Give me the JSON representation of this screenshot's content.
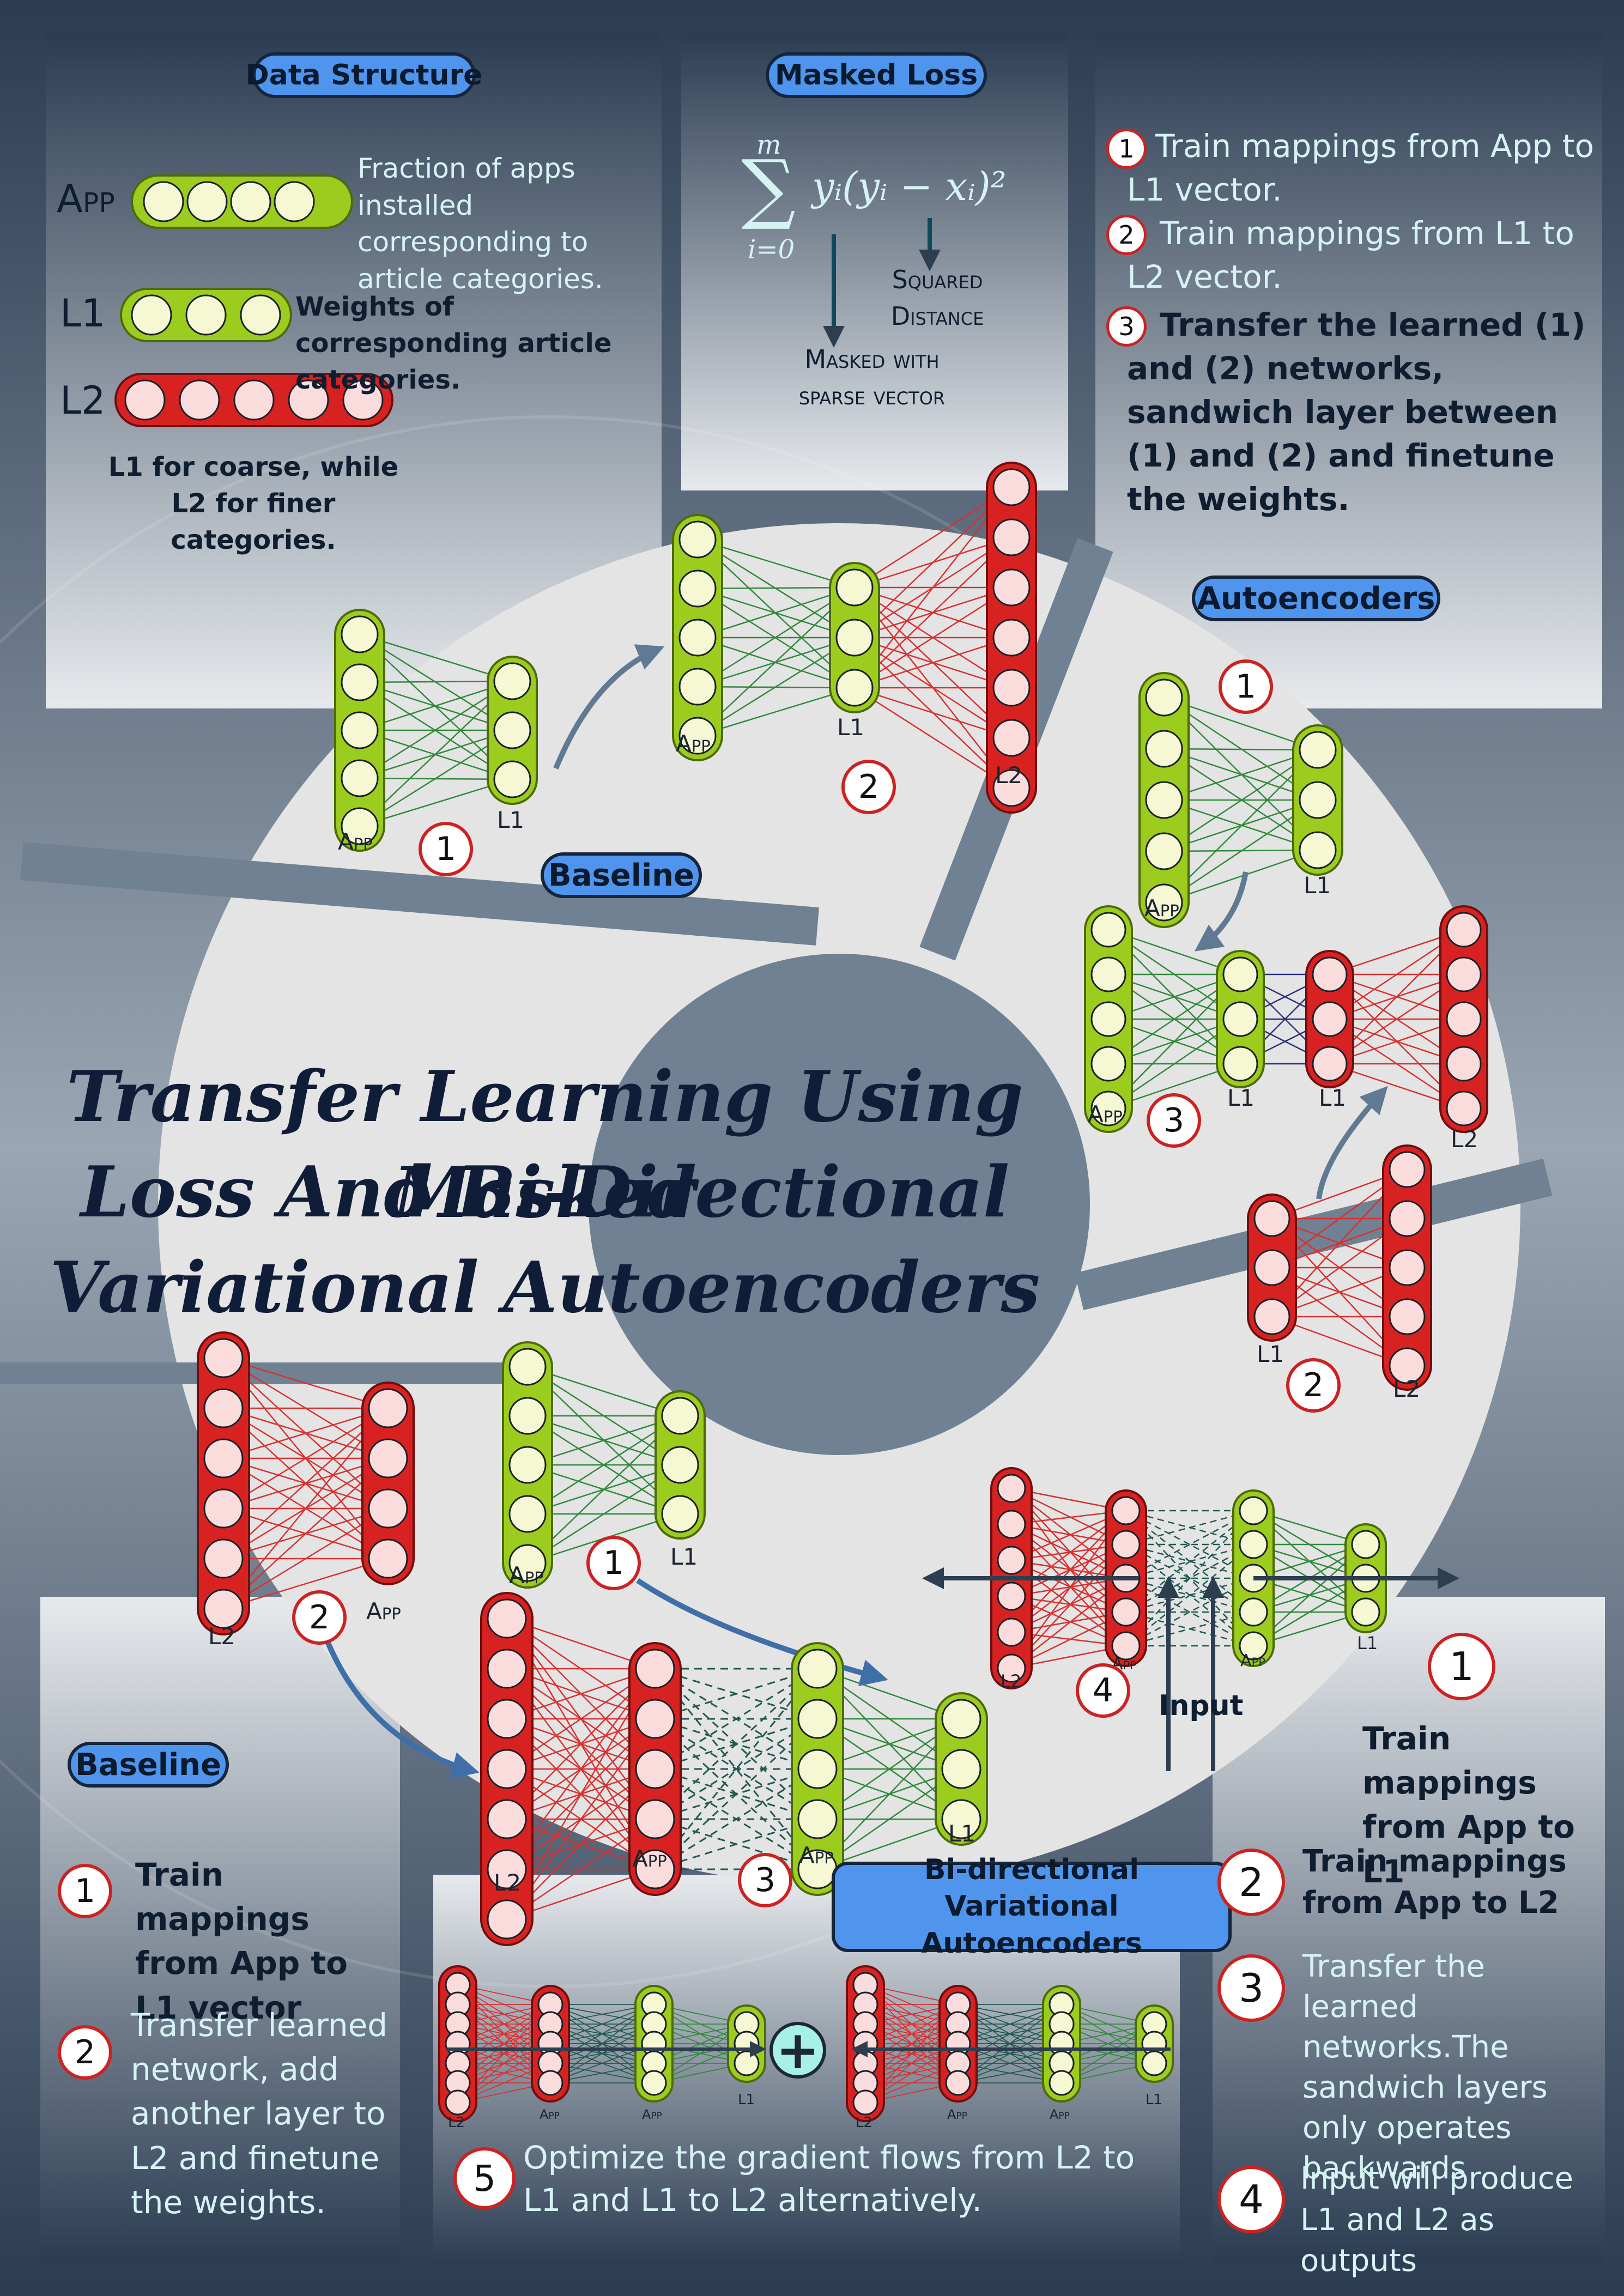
{
  "title": {
    "line1": "Transfer Learning Using Masked",
    "line2": "Loss And Bi-Directional",
    "line3": "Variational Autoencoders"
  },
  "data_structure": {
    "heading": "Data Structure",
    "app_label": "App",
    "app_desc": "Fraction of apps installed corresponding to article categories.",
    "l1_label": "L1",
    "l1_desc": "Weights of corresponding article categories.",
    "l2_label": "L2",
    "summary": "L1 for coarse, while L2 for finer categories."
  },
  "masked_loss": {
    "heading": "Masked Loss",
    "sum_top": "m",
    "sum_bottom": "i=0",
    "expression": "yᵢ(yᵢ − xᵢ)²",
    "squared_label": "Squared Distance",
    "masked_label": "Masked with sparse vector"
  },
  "autoencoder_steps": {
    "step1": "Train mappings from App to L1 vector.",
    "step2": "Train mappings from L1 to L2 vector.",
    "step3": "Transfer the learned (1) and (2) networks, sandwich layer between (1) and (2) and finetune the weights."
  },
  "sections": {
    "baseline": "Baseline",
    "autoencoders": "Autoencoders",
    "bivae": "Bi-directional Variational Autoencoders",
    "input": "Input"
  },
  "baseline_steps": {
    "step1": "Train mappings from App to L1 vector",
    "step2": "Transfer learned network, add another layer to L2 and finetune the weights."
  },
  "bivae_steps": {
    "step1": "Train mappings from App to L1",
    "step2": "Train mappings from App to L2",
    "step3": "Transfer the learned networks.The sandwich layers only operates backwards",
    "step4": "Input will produce L1 and L2 as outputs",
    "step5": "Optimize the gradient flows from L2 to L1 and L1 to L2 alternatively."
  },
  "layer_labels": {
    "app": "App",
    "l1": "L1",
    "l2": "L2"
  },
  "numbers": {
    "n1": "1",
    "n2": "2",
    "n3": "3",
    "n4": "4",
    "n5": "5",
    "plus": "+"
  },
  "colors": {
    "app_fill": "#9ccc1d",
    "app_node": "#f6f8d4",
    "l2_fill": "#d82222",
    "l2_node": "#fbdcdc",
    "pill_blue": "#4f95ee",
    "ring": "#e4e4e4",
    "light_text": "#d6f3f4",
    "dark_text": "#0e1d30"
  }
}
